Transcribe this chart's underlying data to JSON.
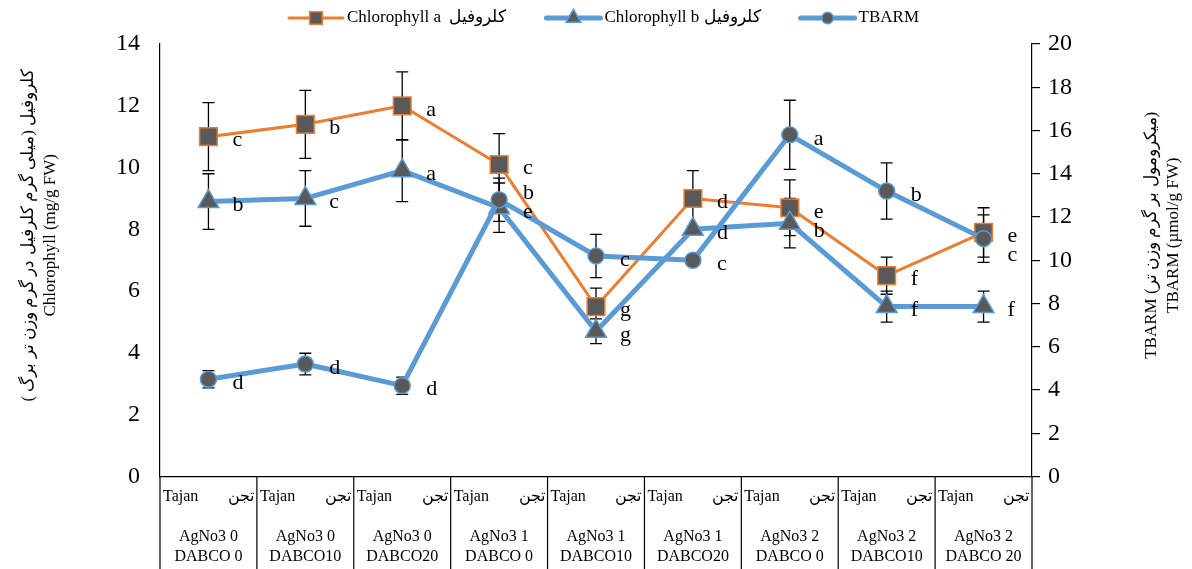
{
  "chart_data": {
    "type": "line",
    "categories": [
      "Tajan تجن\nAgNo3 0\nDABCO 0",
      "Tajan تجن\nAgNo3 0\nDABCO10",
      "Tajan تجن\nAgNo3 0\nDABCO20",
      "Tajan تجن\nAgNo3 1\nDABCO 0",
      "Tajan تجن\nAgNo3 1\nDABCO10",
      "Tajan تجن\nAgNo3 1\nDABCO20",
      "Tajan تجن\nAgNo3 2\nDABCO 0",
      "Tajan تجن\nAgNo3 2\nDABCO10",
      "Tajan تجن\nAgNo3 2\nDABCO 20"
    ],
    "ylabel": "کلروفیل (میلی گرم کلرفیل در گرم وزن تر برگ )\nChlorophyll (mg/g FW)",
    "y2label": "TBARM (میکرومول بر گرم وزن تر)\nTBARM (µmol/g FW)",
    "ylim": [
      0,
      14
    ],
    "yticks": [
      0,
      2,
      4,
      6,
      8,
      10,
      12,
      14
    ],
    "y2lim": [
      0,
      20
    ],
    "y2ticks": [
      0,
      2,
      4,
      6,
      8,
      10,
      12,
      14,
      16,
      18,
      20
    ],
    "legend": "top",
    "series": [
      {
        "name": "Chlorophyll a  کلروفیل",
        "color": "#ed7d31",
        "marker": "square",
        "values": [
          11.0,
          11.4,
          12.0,
          10.1,
          5.5,
          9.0,
          8.7,
          6.5,
          7.9
        ],
        "errors": [
          1.1,
          1.1,
          1.1,
          1.0,
          0.6,
          0.9,
          0.9,
          0.6,
          0.8
        ],
        "value_labels": [
          "c",
          "b",
          "a",
          "c",
          "g",
          "d",
          "e",
          "f",
          "e"
        ]
      },
      {
        "name": "Chlorophyll b کلروفیل",
        "color": "#5b9bd5",
        "marker": "triangle",
        "values": [
          8.9,
          9.0,
          9.9,
          8.7,
          4.7,
          8.0,
          8.2,
          5.5,
          5.5
        ],
        "errors": [
          0.9,
          0.9,
          1.0,
          0.8,
          0.4,
          null,
          0.8,
          0.5,
          0.5
        ],
        "value_labels": [
          "b",
          "c",
          "a",
          "e",
          "g",
          "d",
          "b",
          "f",
          "f"
        ]
      },
      {
        "name": "TBARM",
        "color": "#5b9bd5",
        "marker": "circle",
        "axis": "y2",
        "values": [
          4.5,
          5.2,
          4.2,
          12.8,
          10.2,
          10.0,
          15.8,
          13.2,
          11.0
        ],
        "errors": [
          0.4,
          0.5,
          0.4,
          1.0,
          1.0,
          null,
          1.6,
          1.3,
          1.1
        ],
        "value_labels": [
          "d",
          "d",
          "d",
          "b",
          "c",
          "c",
          "a",
          "b",
          "c"
        ]
      }
    ]
  }
}
